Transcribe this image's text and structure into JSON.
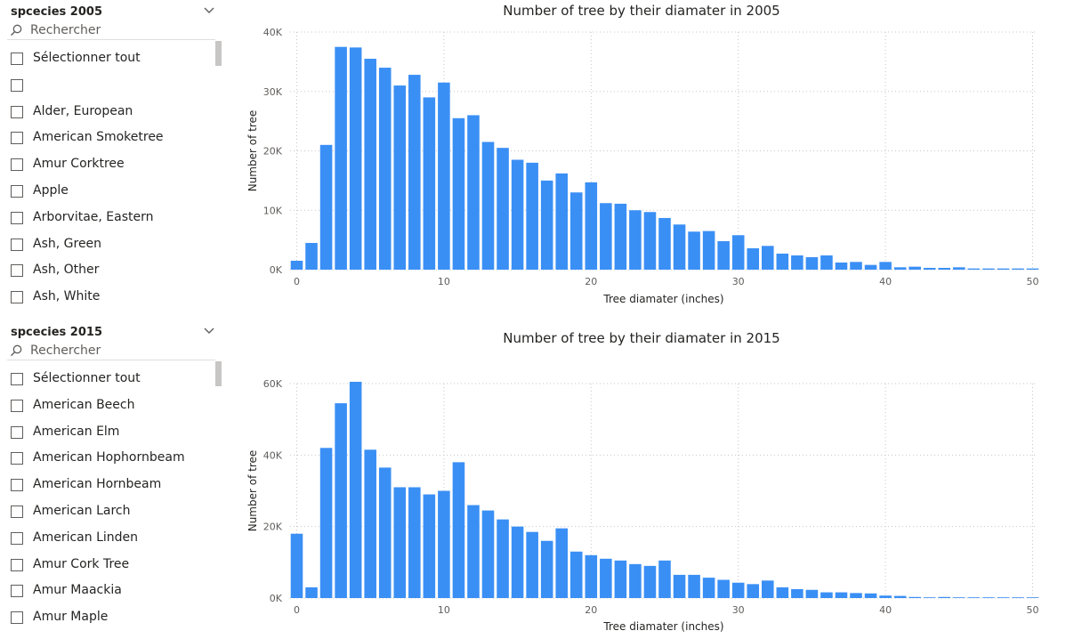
{
  "slicer_2005": {
    "title": "spcecies 2005",
    "search_placeholder": "Rechercher",
    "items": [
      "Sélectionner tout",
      "",
      "Alder, European",
      "American Smoketree",
      "Amur Corktree",
      "Apple",
      "Arborvitae, Eastern",
      "Ash, Green",
      "Ash, Other",
      "Ash, White"
    ]
  },
  "slicer_2015": {
    "title": "spcecies 2015",
    "search_placeholder": "Rechercher",
    "items": [
      "Sélectionner tout",
      "American Beech",
      "American Elm",
      "American Hophornbeam",
      "American Hornbeam",
      "American Larch",
      "American Linden",
      "Amur Cork Tree",
      "Amur Maackia",
      "Amur Maple"
    ]
  },
  "colors": {
    "bar": "#3a8ff5",
    "grid": "#c8c6c4"
  },
  "icons": {
    "search": "search-icon",
    "chevron": "chevron-down-icon"
  },
  "chart_data": [
    {
      "type": "bar",
      "title": "Number of tree by their diamater in 2005",
      "xlabel": "Tree diamater (inches)",
      "ylabel": "Number of tree",
      "x_ticks": [
        "0",
        "10",
        "20",
        "30",
        "40",
        "50"
      ],
      "y_ticks": [
        "0K",
        "10K",
        "20K",
        "30K",
        "40K"
      ],
      "ylim": [
        0,
        40000
      ],
      "xlim": [
        0,
        50
      ],
      "grid": true,
      "x": [
        0,
        1,
        2,
        3,
        4,
        5,
        6,
        7,
        8,
        9,
        10,
        11,
        12,
        13,
        14,
        15,
        16,
        17,
        18,
        19,
        20,
        21,
        22,
        23,
        24,
        25,
        26,
        27,
        28,
        29,
        30,
        31,
        32,
        33,
        34,
        35,
        36,
        37,
        38,
        39,
        40,
        41,
        42,
        43,
        44,
        45,
        46,
        47,
        48,
        49,
        50
      ],
      "values": [
        1500,
        4500,
        21000,
        37500,
        37400,
        35500,
        34000,
        31000,
        32800,
        29000,
        31500,
        25500,
        26000,
        21500,
        20500,
        18500,
        18000,
        15000,
        16200,
        13000,
        14700,
        11200,
        11100,
        10000,
        9700,
        8700,
        7600,
        6400,
        6500,
        4800,
        5800,
        3600,
        4000,
        2700,
        2400,
        2100,
        2400,
        1200,
        1300,
        800,
        1300,
        400,
        500,
        300,
        300,
        400,
        200,
        200,
        200,
        200,
        200
      ]
    },
    {
      "type": "bar",
      "title": "Number of tree by their diamater in 2015",
      "xlabel": "Tree diamater (inches)",
      "ylabel": "Number of tree",
      "x_ticks": [
        "0",
        "10",
        "20",
        "30",
        "40",
        "50"
      ],
      "y_ticks": [
        "0K",
        "20K",
        "40K",
        "60K"
      ],
      "ylim": [
        0,
        60000
      ],
      "xlim": [
        0,
        50
      ],
      "grid": true,
      "x": [
        0,
        1,
        2,
        3,
        4,
        5,
        6,
        7,
        8,
        9,
        10,
        11,
        12,
        13,
        14,
        15,
        16,
        17,
        18,
        19,
        20,
        21,
        22,
        23,
        24,
        25,
        26,
        27,
        28,
        29,
        30,
        31,
        32,
        33,
        34,
        35,
        36,
        37,
        38,
        39,
        40,
        41,
        42,
        43,
        44,
        45,
        46,
        47,
        48,
        49,
        50
      ],
      "values": [
        18000,
        3000,
        42000,
        54500,
        60500,
        41500,
        36500,
        31000,
        31000,
        29000,
        30000,
        38000,
        26000,
        24500,
        22000,
        20000,
        18500,
        16000,
        19500,
        13000,
        12000,
        11000,
        10500,
        9500,
        9000,
        10500,
        6500,
        6500,
        5700,
        5100,
        4300,
        3900,
        4900,
        3000,
        2500,
        2300,
        1600,
        1600,
        1400,
        1300,
        700,
        600,
        300,
        200,
        300,
        200,
        200,
        200,
        200,
        200,
        200
      ]
    }
  ]
}
